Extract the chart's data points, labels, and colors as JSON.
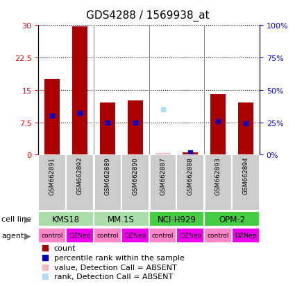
{
  "title": "GDS4288 / 1569938_at",
  "samples": [
    "GSM662891",
    "GSM662892",
    "GSM662889",
    "GSM662890",
    "GSM662887",
    "GSM662888",
    "GSM662893",
    "GSM662894"
  ],
  "count_values": [
    17.5,
    29.8,
    12.0,
    12.5,
    0.3,
    0.5,
    14.0,
    12.0
  ],
  "count_absent": [
    false,
    false,
    false,
    false,
    true,
    false,
    false,
    false
  ],
  "percentile_values": [
    30,
    32,
    25,
    25,
    35,
    1.5,
    26,
    24
  ],
  "percentile_absent": [
    false,
    false,
    false,
    false,
    true,
    false,
    false,
    false
  ],
  "ylim": [
    0,
    30
  ],
  "y2lim": [
    0,
    100
  ],
  "yticks": [
    0,
    7.5,
    15,
    22.5,
    30
  ],
  "y2ticks": [
    0,
    25,
    50,
    75,
    100
  ],
  "cell_lines": [
    {
      "label": "KMS18",
      "span": [
        0,
        2
      ],
      "color": "#aaddaa"
    },
    {
      "label": "MM.1S",
      "span": [
        2,
        4
      ],
      "color": "#aaddaa"
    },
    {
      "label": "NCI-H929",
      "span": [
        4,
        6
      ],
      "color": "#44cc44"
    },
    {
      "label": "OPM-2",
      "span": [
        6,
        8
      ],
      "color": "#44cc44"
    }
  ],
  "agents": [
    "control",
    "DZNep",
    "control",
    "DZNep",
    "control",
    "DZNep",
    "control",
    "DZNep"
  ],
  "agent_colors": [
    "#FF85C8",
    "#EE00EE",
    "#FF85C8",
    "#EE00EE",
    "#FF85C8",
    "#EE00EE",
    "#FF85C8",
    "#EE00EE"
  ],
  "bar_color_normal": "#AA0000",
  "bar_color_absent": "#FFB6C1",
  "percentile_color_normal": "#0000CC",
  "percentile_color_absent": "#AADDFF",
  "bar_width": 0.55,
  "title_fontsize": 11,
  "legend_fontsize": 8
}
